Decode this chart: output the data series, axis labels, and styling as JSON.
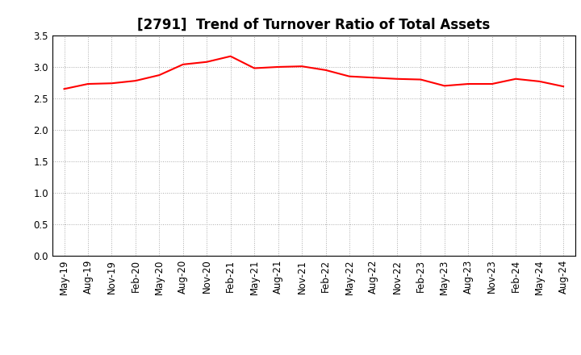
{
  "title": "[2791]  Trend of Turnover Ratio of Total Assets",
  "line_color": "#FF0000",
  "line_width": 1.5,
  "background_color": "#FFFFFF",
  "grid_color": "#AAAAAA",
  "ylim": [
    0.0,
    3.5
  ],
  "yticks": [
    0.0,
    0.5,
    1.0,
    1.5,
    2.0,
    2.5,
    3.0,
    3.5
  ],
  "x_labels": [
    "May-19",
    "Aug-19",
    "Nov-19",
    "Feb-20",
    "May-20",
    "Aug-20",
    "Nov-20",
    "Feb-21",
    "May-21",
    "Aug-21",
    "Nov-21",
    "Feb-22",
    "May-22",
    "Aug-22",
    "Nov-22",
    "Feb-23",
    "May-23",
    "Aug-23",
    "Nov-23",
    "Feb-24",
    "May-24",
    "Aug-24"
  ],
  "values": [
    2.65,
    2.73,
    2.74,
    2.78,
    2.87,
    3.04,
    3.08,
    3.17,
    2.98,
    3.0,
    3.01,
    2.95,
    2.85,
    2.83,
    2.81,
    2.8,
    2.7,
    2.73,
    2.73,
    2.81,
    2.77,
    2.69
  ],
  "title_fontsize": 12,
  "tick_fontsize": 8.5
}
